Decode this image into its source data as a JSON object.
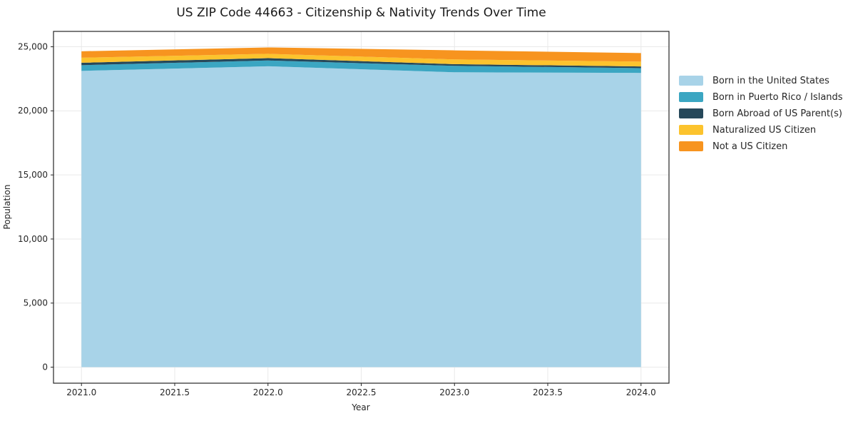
{
  "chart_data": {
    "type": "area",
    "stacked": true,
    "title": "US ZIP Code 44663 - Citizenship & Nativity Trends Over Time",
    "xlabel": "Year",
    "ylabel": "Population",
    "x": [
      2021,
      2022,
      2023,
      2024
    ],
    "series": [
      {
        "name": "Born in the United States",
        "color": "#a8d3e8",
        "values": [
          23120,
          23480,
          23010,
          22960
        ]
      },
      {
        "name": "Born in Puerto Rico / Islands",
        "color": "#3ba6c2",
        "values": [
          445,
          450,
          500,
          375
        ]
      },
      {
        "name": "Born Abroad of US Parent(s)",
        "color": "#26485a",
        "values": [
          190,
          185,
          135,
          130
        ]
      },
      {
        "name": "Naturalized US Citizen",
        "color": "#fcc32d",
        "values": [
          390,
          335,
          370,
          375
        ]
      },
      {
        "name": "Not a US Citizen",
        "color": "#f7941f",
        "values": [
          505,
          500,
          705,
          670
        ]
      }
    ],
    "totals": [
      24650,
      24950,
      24720,
      24510
    ],
    "xlim": [
      2020.85,
      2024.15
    ],
    "ylim": [
      -1250,
      26200
    ],
    "xticks": {
      "values": [
        2021.0,
        2021.5,
        2022.0,
        2022.5,
        2023.0,
        2023.5,
        2024.0
      ],
      "labels": [
        "2021.0",
        "2021.5",
        "2022.0",
        "2022.5",
        "2023.0",
        "2023.5",
        "2024.0"
      ]
    },
    "yticks": {
      "values": [
        0,
        5000,
        10000,
        15000,
        20000,
        25000
      ],
      "labels": [
        "0",
        "5,000",
        "10,000",
        "15,000",
        "20,000",
        "25,000"
      ]
    },
    "grid": true,
    "legend_position": "right",
    "colors": {
      "axis": "#262626",
      "grid": "#e9e9e9",
      "background": "#ffffff",
      "text": "#262626"
    }
  }
}
